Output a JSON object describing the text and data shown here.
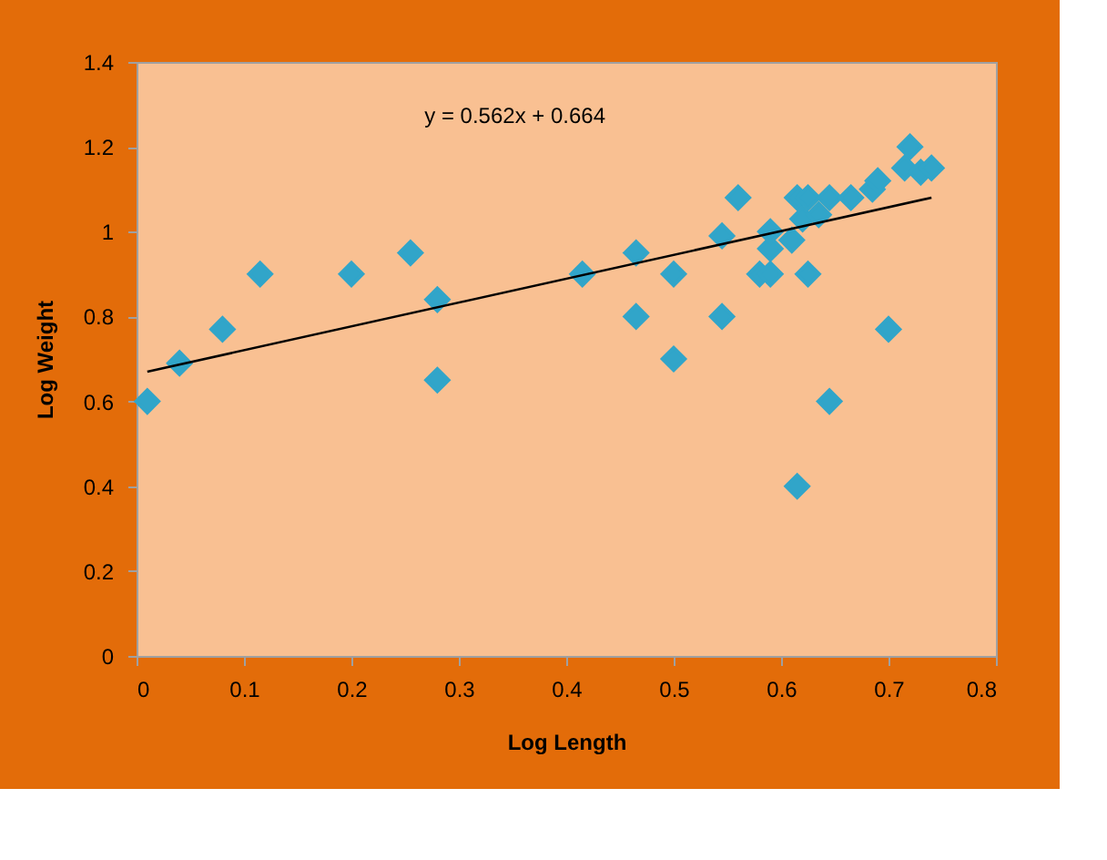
{
  "chart_data": {
    "type": "scatter",
    "xlabel": "Log Length",
    "ylabel": "Log Weight",
    "xlim": [
      0,
      0.8
    ],
    "ylim": [
      0,
      1.4
    ],
    "xticks": [
      0,
      0.1,
      0.2,
      0.3,
      0.4,
      0.5,
      0.6,
      0.7,
      0.8
    ],
    "yticks": [
      0,
      0.2,
      0.4,
      0.6,
      0.8,
      1,
      1.2,
      1.4
    ],
    "grid": false,
    "marker": "diamond",
    "annotations": [
      "y = 0.562x + 0.664"
    ],
    "series": [
      {
        "color": "#31a5c9",
        "x": [
          0.01,
          0.04,
          0.08,
          0.115,
          0.2,
          0.255,
          0.28,
          0.28,
          0.415,
          0.465,
          0.465,
          0.5,
          0.5,
          0.545,
          0.545,
          0.56,
          0.58,
          0.59,
          0.59,
          0.59,
          0.61,
          0.615,
          0.62,
          0.625,
          0.625,
          0.615,
          0.635,
          0.645,
          0.645,
          0.665,
          0.685,
          0.69,
          0.7,
          0.715,
          0.72,
          0.73,
          0.74
        ],
        "values": [
          0.6,
          0.69,
          0.77,
          0.9,
          0.9,
          0.95,
          0.84,
          0.65,
          0.9,
          0.95,
          0.8,
          0.9,
          0.7,
          0.99,
          0.8,
          1.08,
          0.9,
          0.9,
          0.96,
          1.0,
          0.98,
          1.08,
          1.03,
          1.08,
          0.9,
          0.4,
          1.04,
          1.08,
          0.6,
          1.08,
          1.1,
          1.12,
          0.77,
          1.15,
          1.2,
          1.14,
          1.15
        ]
      },
      {
        "type": "line",
        "color": "#000000",
        "x": [
          0.01,
          0.74
        ],
        "values": [
          0.67,
          1.08
        ],
        "marker": "none"
      }
    ]
  }
}
